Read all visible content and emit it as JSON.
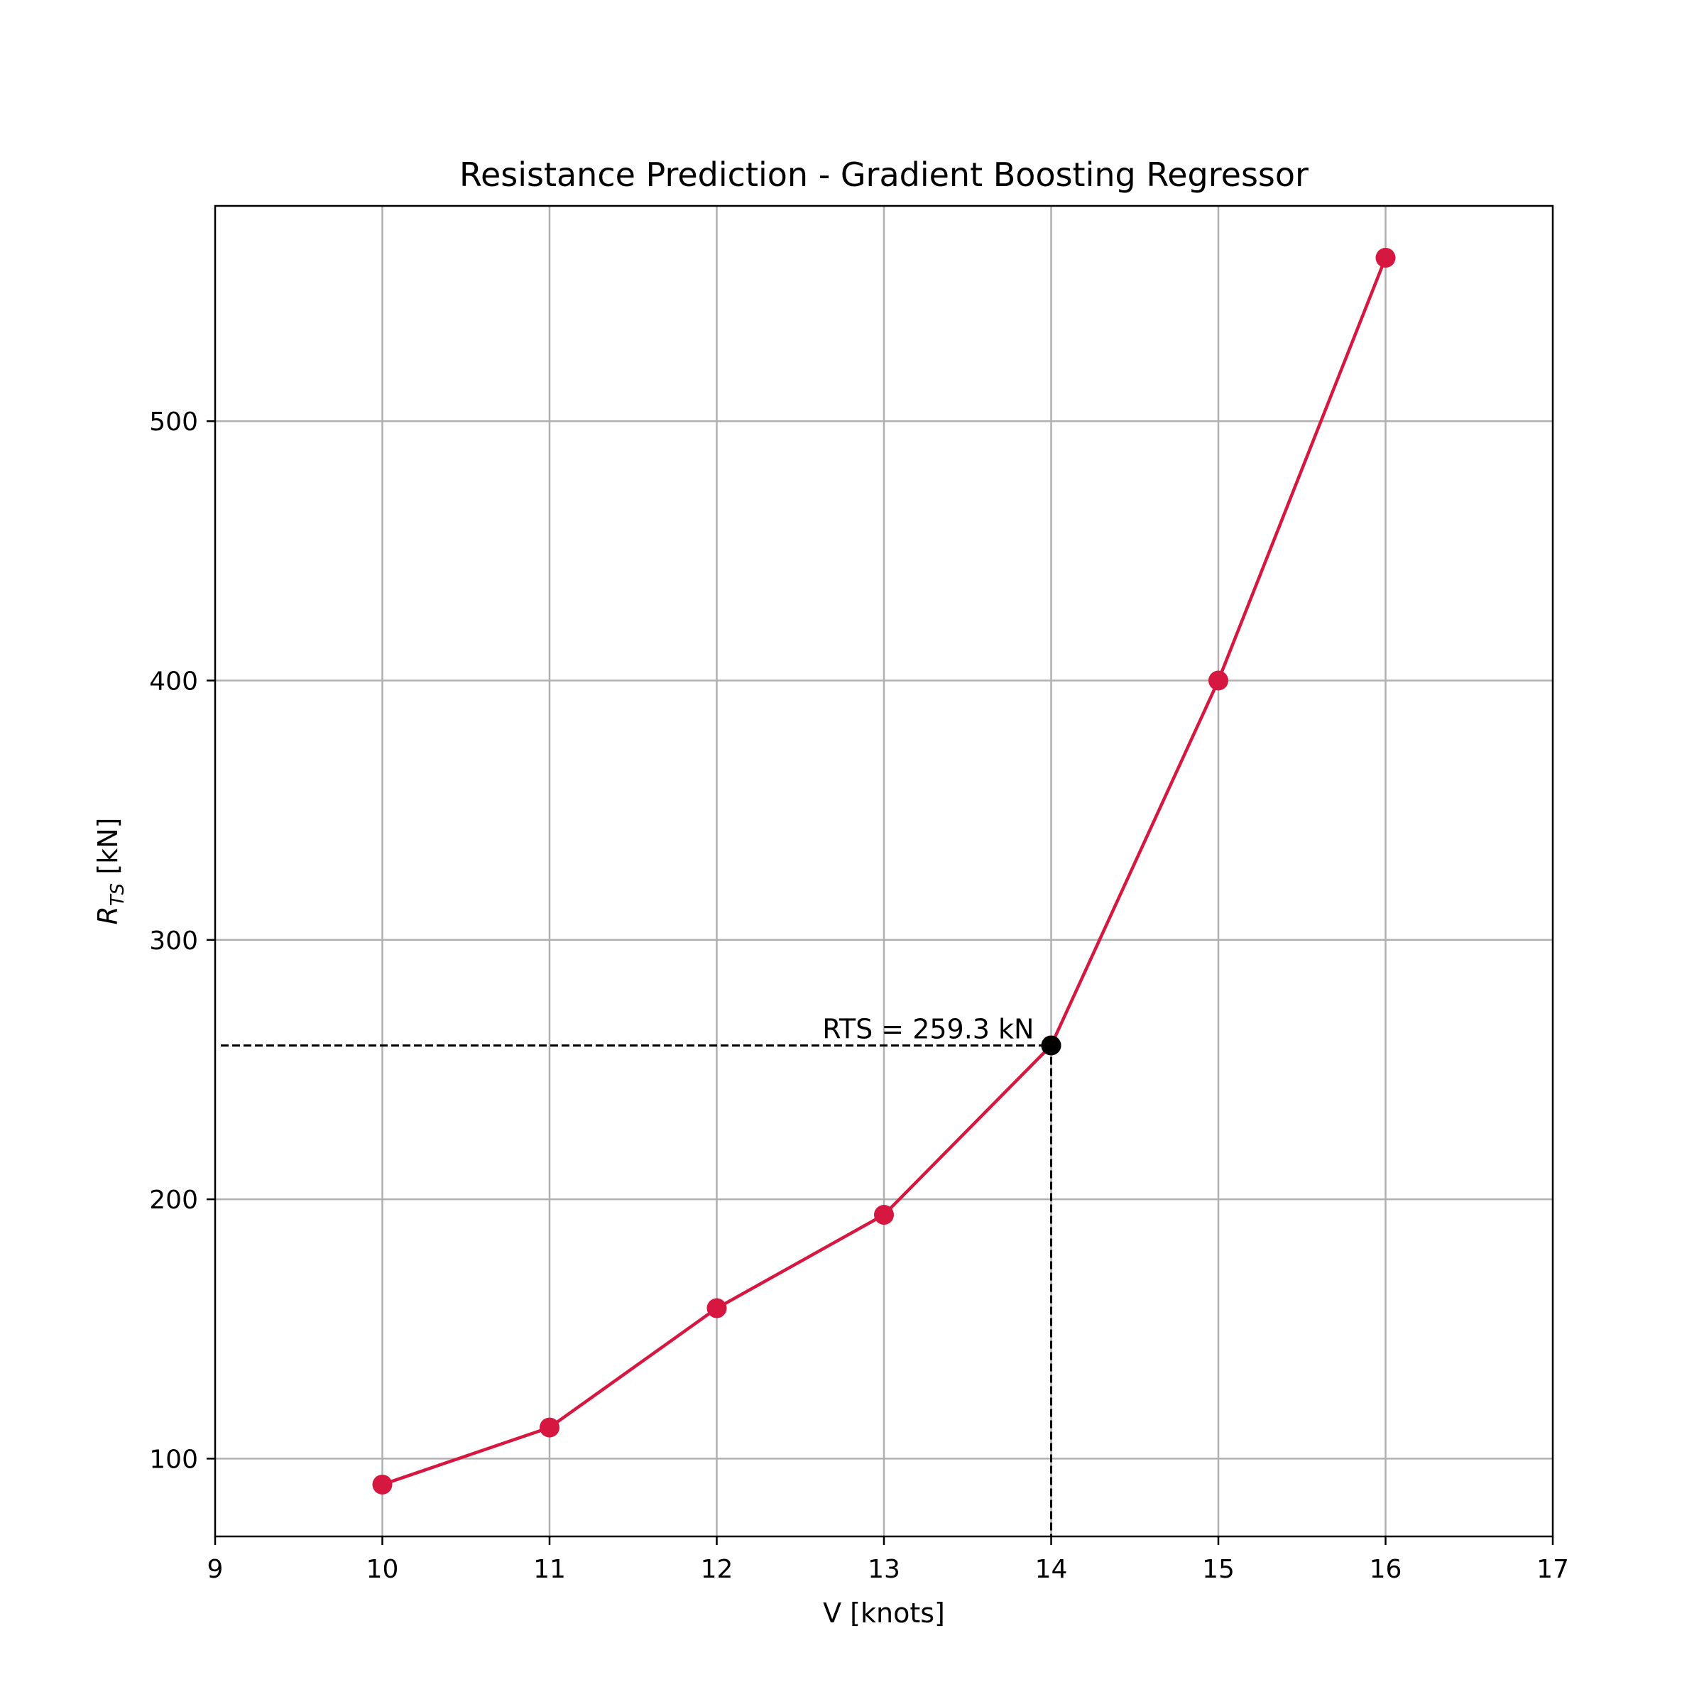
{
  "chart_data": {
    "type": "line",
    "title": "Resistance Prediction - Gradient Boosting Regressor",
    "xlabel": "V [knots]",
    "ylabel_main": "R",
    "ylabel_sub": "TS",
    "ylabel_unit": " [kN]",
    "xlim": [
      9,
      17
    ],
    "ylim": [
      70,
      583
    ],
    "xticks": [
      9,
      10,
      11,
      12,
      13,
      14,
      15,
      16,
      17
    ],
    "yticks": [
      100,
      200,
      300,
      400,
      500
    ],
    "grid": true,
    "series": [
      {
        "x": [
          10,
          11,
          12,
          13,
          14,
          15,
          16
        ],
        "y": [
          90,
          112,
          158,
          194,
          259.3,
          400,
          563
        ],
        "color": "#d6173f"
      }
    ],
    "highlight": {
      "x": 14,
      "y": 259.3,
      "label": "RTS = 259.3 kN",
      "color": "#000000"
    }
  }
}
